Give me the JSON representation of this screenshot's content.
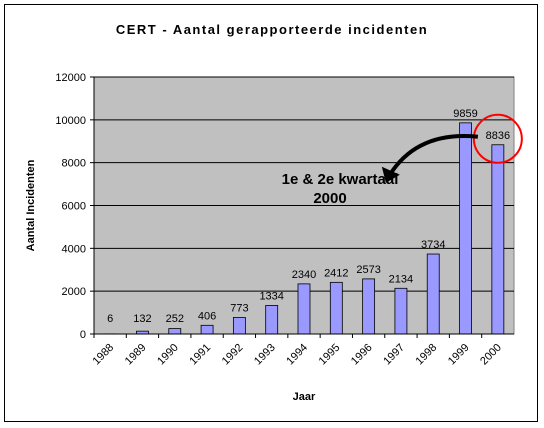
{
  "chart_data": {
    "type": "bar",
    "title": "CERT - Aantal gerapporteerde incidenten",
    "xlabel": "Jaar",
    "ylabel": "Aantal Incidenten",
    "ylim": [
      0,
      12000
    ],
    "yticks": [
      0,
      2000,
      4000,
      6000,
      8000,
      10000,
      12000
    ],
    "grid": true,
    "categories": [
      "1988",
      "1989",
      "1990",
      "1991",
      "1992",
      "1993",
      "1994",
      "1995",
      "1996",
      "1997",
      "1998",
      "1999",
      "2000"
    ],
    "values": [
      6,
      132,
      252,
      406,
      773,
      1334,
      2340,
      2412,
      2573,
      2134,
      3734,
      9859,
      8836
    ],
    "data_labels": [
      "6",
      "132",
      "252",
      "406",
      "773",
      "1334",
      "2340",
      "2412",
      "2573",
      "2134",
      "3734",
      "9859",
      "8836"
    ],
    "annotation": {
      "line1": "1e & 2e kwartaal",
      "line2": "2000",
      "target_category": "2000"
    },
    "colors": {
      "plot_background": "#c0c0c0",
      "bar_fill": "#9999ff",
      "bar_stroke": "#000000",
      "highlight_circle": "#ff0000"
    }
  }
}
